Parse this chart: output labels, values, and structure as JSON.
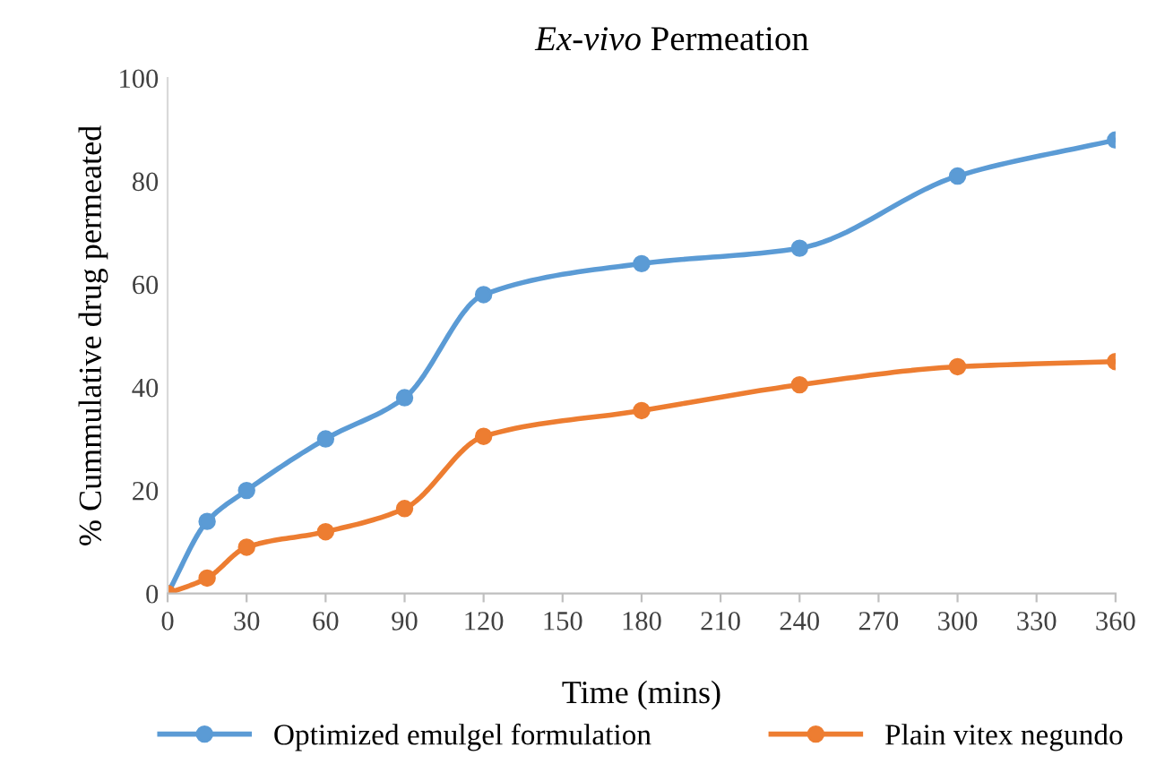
{
  "chart_data": {
    "type": "line",
    "title": "Ex-vivo Permeation",
    "xlabel": "Time (mins)",
    "ylabel": "% Cummulative drug permeated",
    "x": [
      0,
      15,
      30,
      60,
      90,
      120,
      180,
      240,
      300,
      360
    ],
    "series": [
      {
        "name": "Optimized emulgel formulation",
        "color": "#5b9bd5",
        "values": [
          0,
          14,
          20,
          30,
          38,
          58,
          64,
          67,
          81,
          88
        ]
      },
      {
        "name": "Plain vitex negundo",
        "color": "#ed7d31",
        "values": [
          0,
          3,
          9,
          12,
          16.5,
          30.5,
          35.5,
          40.5,
          44,
          45
        ]
      }
    ],
    "xlim": [
      0,
      360
    ],
    "xticks": [
      0,
      30,
      60,
      90,
      120,
      150,
      180,
      210,
      240,
      270,
      300,
      330,
      360
    ],
    "ylim": [
      0,
      100
    ],
    "yticks": [
      0,
      20,
      40,
      60,
      80,
      100
    ],
    "grid": false,
    "legend": "bottom",
    "marker": "circle",
    "line_style": "solid"
  }
}
